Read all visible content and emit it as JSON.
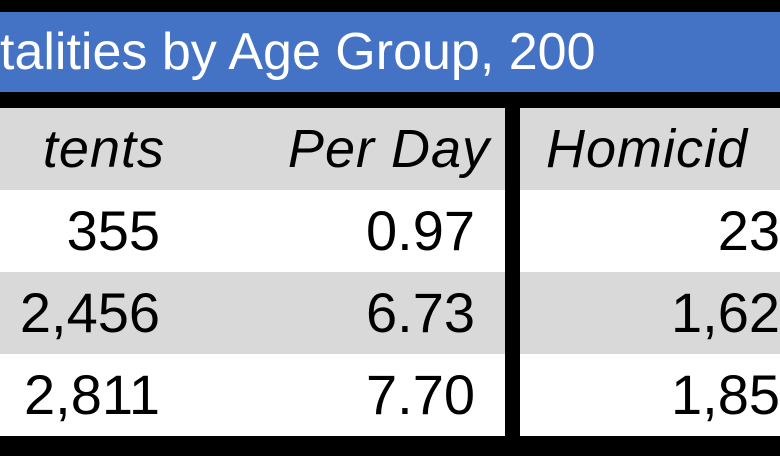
{
  "header": {
    "title": "talities by Age Group, 200"
  },
  "table": {
    "columns": [
      "tents",
      "Per Day",
      "Homicid"
    ],
    "rows": [
      [
        "355",
        "0.97",
        "23"
      ],
      [
        "2,456",
        "6.73",
        "1,62"
      ],
      [
        "2,811",
        "7.70",
        "1,85"
      ]
    ]
  }
}
